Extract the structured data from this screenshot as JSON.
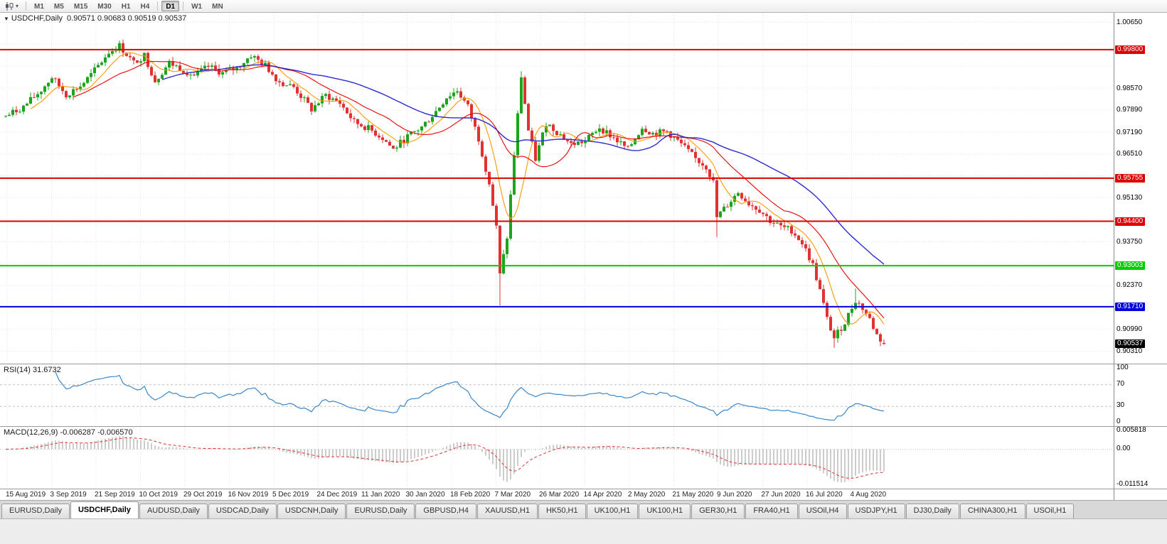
{
  "toolbar": {
    "timeframes": [
      "M1",
      "M5",
      "M15",
      "M30",
      "H1",
      "H4",
      "D1",
      "W1",
      "MN"
    ],
    "active_timeframe": "D1",
    "caret_glyph": "▾"
  },
  "chart": {
    "collapse_icon": "▼",
    "symbol_label": "USDCHF,Daily",
    "ohlc_text": "0.90571 0.90683 0.90519 0.90537",
    "price_axis": {
      "min": 0.901,
      "max": 1.0078,
      "ticks": [
        "1.00650",
        "0.98570",
        "0.97890",
        "0.97190",
        "0.96510",
        "0.95130",
        "0.93750",
        "0.92370",
        "0.90990",
        "0.90310"
      ],
      "levels": [
        {
          "value": 0.998,
          "label": "0.99800",
          "color": "#dd0000"
        },
        {
          "value": 0.95755,
          "label": "0.95755",
          "color": "#dd0000"
        },
        {
          "value": 0.944,
          "label": "0.94400",
          "color": "#dd0000"
        },
        {
          "value": 0.93003,
          "label": "0.93003",
          "color": "#00cc00"
        },
        {
          "value": 0.9171,
          "label": "0.91710",
          "color": "#0000dd"
        }
      ],
      "current_price": {
        "value": 0.90537,
        "label": "0.90537",
        "color": "#000000"
      },
      "grid_interval": 0.0069,
      "grid_base": 0.9031
    },
    "colors": {
      "up": "#1ca41c",
      "down": "#e03232",
      "grid": "#e4e4e4"
    }
  },
  "rsi": {
    "label": "RSI(14) 31.6732",
    "period": 14,
    "value": 31.6732,
    "color": "#3b87c8",
    "levels": [
      70,
      30
    ],
    "ticks": [
      {
        "value": 100,
        "label": "100"
      },
      {
        "value": 70,
        "label": "70"
      },
      {
        "value": 30,
        "label": "30"
      },
      {
        "value": 0,
        "label": "0"
      }
    ]
  },
  "macd": {
    "label": "MACD(12,26,9) -0.006287 -0.006570",
    "fast": 12,
    "slow": 26,
    "signal": 9,
    "macd_value": -0.006287,
    "signal_value": -0.00657,
    "max": 0.005818,
    "min": -0.011514,
    "histogram_color": "#9a9a9a",
    "signal_color": "#e03232",
    "ticks": [
      {
        "value": 0.005818,
        "label": "0.005818"
      },
      {
        "value": 0,
        "label": "0.00"
      },
      {
        "value": -0.011514,
        "label": "-0.011514"
      }
    ]
  },
  "dates": [
    "15 Aug 2019",
    "3 Sep 2019",
    "21 Sep 2019",
    "10 Oct 2019",
    "29 Oct 2019",
    "16 Nov 2019",
    "5 Dec 2019",
    "24 Dec 2019",
    "11 Jan 2020",
    "30 Jan 2020",
    "18 Feb 2020",
    "7 Mar 2020",
    "26 Mar 2020",
    "14 Apr 2020",
    "2 May 2020",
    "21 May 2020",
    "9 Jun 2020",
    "27 Jun 2020",
    "16 Jul 2020",
    "4 Aug 2020"
  ],
  "tabs": {
    "items": [
      "EURUSD,Daily",
      "USDCHF,Daily",
      "AUDUSD,Daily",
      "USDCAD,Daily",
      "USDCNH,Daily",
      "EURUSD,Daily",
      "GBPUSD,H4",
      "XAUUSD,H1",
      "HK50,H1",
      "UK100,H1",
      "UK100,H1",
      "GER30,H1",
      "FRA40,H1",
      "USOil,H4",
      "USDJPY,H1",
      "DJ30,Daily",
      "CHINA300,H1",
      "USOil,H1"
    ],
    "active_index": 1
  },
  "chart_data": {
    "type": "candlestick",
    "symbol": "USDCHF",
    "timeframe": "Daily",
    "open": 0.90571,
    "high": 0.90683,
    "low": 0.90519,
    "close": 0.90537,
    "bar_count": 248,
    "last_bar": {
      "o": 0.90571,
      "h": 0.90683,
      "l": 0.90519,
      "c": 0.90537
    },
    "price_path": [
      [
        0,
        0.977
      ],
      [
        5,
        0.98
      ],
      [
        10,
        0.9852
      ],
      [
        13,
        0.9893
      ],
      [
        17,
        0.9838
      ],
      [
        21,
        0.9865
      ],
      [
        24,
        0.99
      ],
      [
        29,
        0.9972
      ],
      [
        32,
        0.9992
      ],
      [
        36,
        0.9938
      ],
      [
        39,
        0.9962
      ],
      [
        42,
        0.9882
      ],
      [
        46,
        0.9938
      ],
      [
        49,
        0.9922
      ],
      [
        53,
        0.9898
      ],
      [
        57,
        0.9926
      ],
      [
        61,
        0.9906
      ],
      [
        65,
        0.9922
      ],
      [
        69,
        0.9962
      ],
      [
        73,
        0.993
      ],
      [
        77,
        0.9878
      ],
      [
        81,
        0.9862
      ],
      [
        86,
        0.9792
      ],
      [
        90,
        0.9836
      ],
      [
        94,
        0.9812
      ],
      [
        98,
        0.9752
      ],
      [
        102,
        0.9732
      ],
      [
        106,
        0.9702
      ],
      [
        109,
        0.9666
      ],
      [
        113,
        0.9706
      ],
      [
        117,
        0.9736
      ],
      [
        121,
        0.9786
      ],
      [
        124,
        0.983
      ],
      [
        127,
        0.9852
      ],
      [
        130,
        0.98
      ],
      [
        133,
        0.97
      ],
      [
        136,
        0.956
      ],
      [
        138,
        0.942
      ],
      [
        139,
        0.927
      ],
      [
        141,
        0.939
      ],
      [
        143,
        0.965
      ],
      [
        145,
        0.9896
      ],
      [
        147,
        0.9725
      ],
      [
        149,
        0.9636
      ],
      [
        152,
        0.975
      ],
      [
        155,
        0.9722
      ],
      [
        159,
        0.9682
      ],
      [
        163,
        0.9692
      ],
      [
        167,
        0.9736
      ],
      [
        171,
        0.9702
      ],
      [
        175,
        0.9666
      ],
      [
        179,
        0.9736
      ],
      [
        182,
        0.9716
      ],
      [
        186,
        0.9722
      ],
      [
        190,
        0.9682
      ],
      [
        194,
        0.9636
      ],
      [
        197,
        0.9612
      ],
      [
        199,
        0.9562
      ],
      [
        200,
        0.9452
      ],
      [
        203,
        0.9492
      ],
      [
        206,
        0.9532
      ],
      [
        209,
        0.9496
      ],
      [
        212,
        0.9476
      ],
      [
        215,
        0.9442
      ],
      [
        218,
        0.9422
      ],
      [
        221,
        0.9412
      ],
      [
        224,
        0.9372
      ],
      [
        227,
        0.9302
      ],
      [
        229,
        0.9222
      ],
      [
        231,
        0.9132
      ],
      [
        233,
        0.9072
      ],
      [
        236,
        0.9122
      ],
      [
        239,
        0.9192
      ],
      [
        241,
        0.9166
      ],
      [
        243,
        0.9132
      ],
      [
        245,
        0.9082
      ],
      [
        247,
        0.90537
      ]
    ],
    "wick_lows": {
      "139": 0.9175,
      "200": 0.939,
      "233": 0.9042
    },
    "wick_highs": {
      "32": 1.0008,
      "145": 0.9912,
      "239": 0.9228
    },
    "moving_averages": [
      {
        "period": 8,
        "color": "#ff9900"
      },
      {
        "period": 20,
        "color": "#ee0000"
      },
      {
        "period": 45,
        "color": "#2b2bd4"
      }
    ],
    "horizontal_levels": [
      0.998,
      0.95755,
      0.944,
      0.93003,
      0.9171
    ],
    "rsi": {
      "period": 14,
      "current": 31.6732
    },
    "macd": {
      "fast": 12,
      "slow": 26,
      "signal": 9,
      "current_macd": -0.006287,
      "current_signal": -0.00657
    },
    "noise_seed": 7
  }
}
